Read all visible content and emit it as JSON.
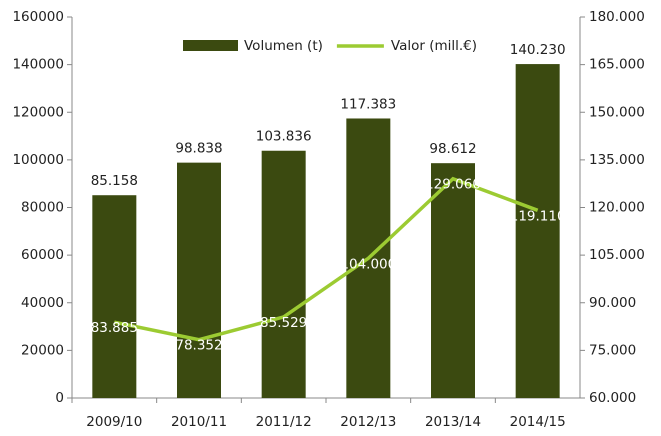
{
  "chart_data": {
    "type": "bar_line",
    "categories": [
      "2009/10",
      "2010/11",
      "2011/12",
      "2012/13",
      "2013/14",
      "2014/15"
    ],
    "series": [
      {
        "name": "Volumen (t)",
        "type": "bar",
        "color": "#3b4a10",
        "values": [
          85158,
          98838,
          103836,
          117383,
          98612,
          140230
        ],
        "value_labels": [
          "85.158",
          "98.838",
          "103.836",
          "117.383",
          "98.612",
          "140.230"
        ]
      },
      {
        "name": "Valor (mill.€)",
        "type": "line",
        "axis": "y2",
        "color": "#9ccb32",
        "values": [
          83885,
          78352,
          85529,
          104000,
          129060,
          119110
        ],
        "value_labels": [
          "83.885",
          "78.352",
          "85.529",
          "104.000",
          "129.060",
          "119.110"
        ]
      }
    ],
    "ylim": [
      0,
      160000
    ],
    "yticks": [
      0,
      20000,
      40000,
      60000,
      80000,
      100000,
      120000,
      140000,
      160000
    ],
    "y2lim": [
      60000,
      180000
    ],
    "y2ticks": [
      {
        "value": 60000,
        "label": "60.000"
      },
      {
        "value": 75000,
        "label": "75.000"
      },
      {
        "value": 90000,
        "label": "90.000"
      },
      {
        "value": 105000,
        "label": "105.000"
      },
      {
        "value": 120000,
        "label": "120.000"
      },
      {
        "value": 135000,
        "label": "135.000"
      },
      {
        "value": 150000,
        "label": "150.000"
      },
      {
        "value": 165000,
        "label": "165.000"
      },
      {
        "value": 180000,
        "label": "180.000"
      }
    ],
    "grid": false,
    "legend": "top"
  }
}
